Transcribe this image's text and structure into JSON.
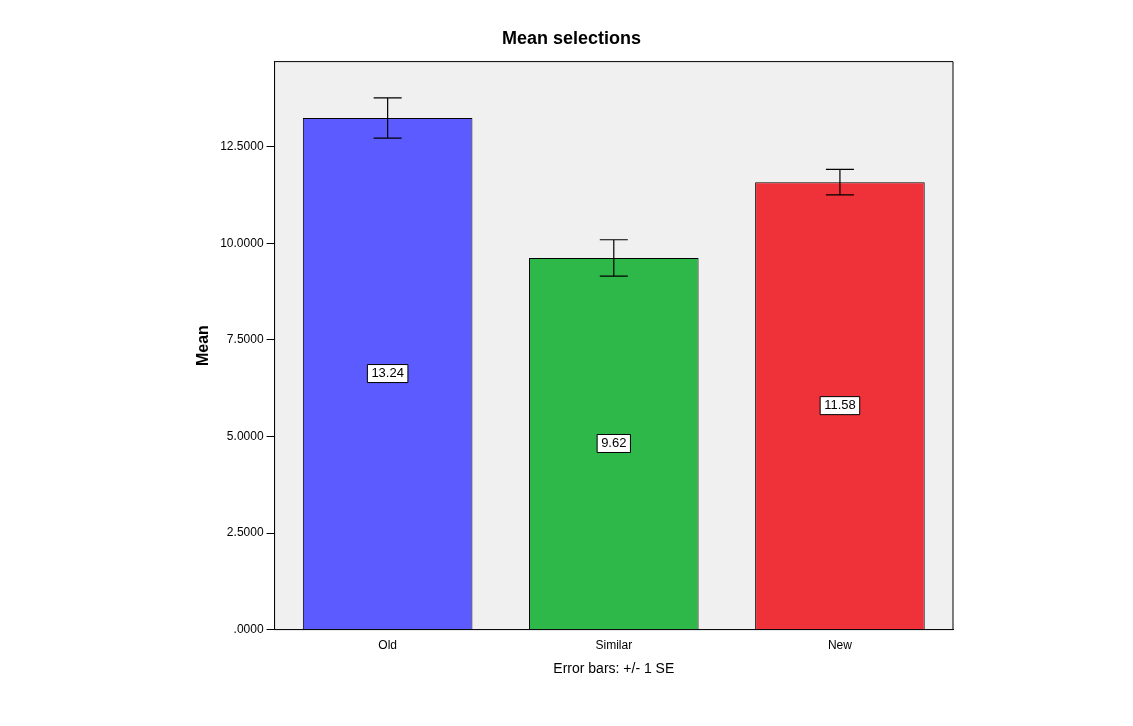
{
  "chart_data": {
    "type": "bar",
    "title": "Mean selections",
    "ylabel": "Mean",
    "categories": [
      "Old",
      "Similar",
      "New"
    ],
    "values": [
      13.24,
      9.62,
      11.58
    ],
    "colors": [
      "#5b5bff",
      "#2eb84a",
      "#ef3239"
    ],
    "errors": [
      0.52,
      0.47,
      0.33
    ],
    "data_labels": true,
    "ylim": [
      0,
      14.7
    ],
    "yticks": [
      {
        "value": 0,
        "label": ".0000"
      },
      {
        "value": 2.5,
        "label": "2.5000"
      },
      {
        "value": 5,
        "label": "5.0000"
      },
      {
        "value": 7.5,
        "label": "7.5000"
      },
      {
        "value": 10,
        "label": "10.0000"
      },
      {
        "value": 12.5,
        "label": "12.5000"
      }
    ],
    "grid": false,
    "legend": false,
    "annotations": [
      "Error bars: +/- 1 SE"
    ]
  }
}
